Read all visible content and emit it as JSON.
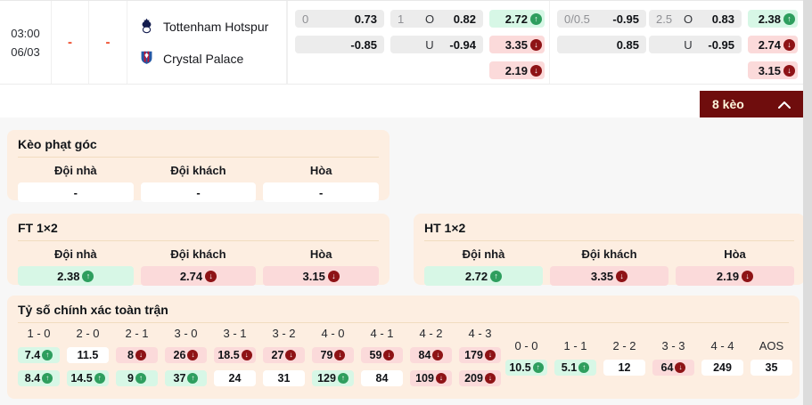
{
  "colors": {
    "up": "#2e9e5e",
    "down": "#8e1316",
    "green_bg": "#d7f7e6",
    "red_bg": "#fbdada",
    "panel_bg": "#fdeee1",
    "maroon": "#6f0d0d",
    "dash_red": "#ee4b2a"
  },
  "match": {
    "time": "03:00",
    "date": "06/03",
    "home_score": "-",
    "away_score": "-",
    "home_team": "Tottenham Hotspur",
    "away_team": "Crystal Palace"
  },
  "odds": {
    "groups": [
      {
        "handicap": {
          "line": "0",
          "home": "0.73",
          "away": "-0.85"
        },
        "ou": {
          "line": "1",
          "over_label": "O",
          "over": "0.82",
          "under_label": "U",
          "under": "-0.94"
        },
        "x12": [
          {
            "value": "2.72",
            "trend": "up"
          },
          {
            "value": "3.35",
            "trend": "down"
          },
          {
            "value": "2.19",
            "trend": "down"
          }
        ]
      },
      {
        "handicap": {
          "line": "0/0.5",
          "home": "-0.95",
          "away": "0.85"
        },
        "ou": {
          "line": "2.5",
          "over_label": "O",
          "over": "0.83",
          "under_label": "U",
          "under": "-0.95"
        },
        "x12": [
          {
            "value": "2.38",
            "trend": "up"
          },
          {
            "value": "2.74",
            "trend": "down"
          },
          {
            "value": "3.15",
            "trend": "down"
          }
        ]
      }
    ]
  },
  "keo": {
    "label": "8 kèo"
  },
  "corner": {
    "title": "Kèo phạt góc",
    "headers": [
      "Đội nhà",
      "Đội khách",
      "Hòa"
    ],
    "cells": [
      {
        "value": "-",
        "trend": "none"
      },
      {
        "value": "-",
        "trend": "none"
      },
      {
        "value": "-",
        "trend": "none"
      }
    ]
  },
  "ft": {
    "title": "FT 1×2",
    "headers": [
      "Đội nhà",
      "Đội khách",
      "Hòa"
    ],
    "cells": [
      {
        "value": "2.38",
        "trend": "up"
      },
      {
        "value": "2.74",
        "trend": "down"
      },
      {
        "value": "3.15",
        "trend": "down"
      }
    ]
  },
  "ht": {
    "title": "HT 1×2",
    "headers": [
      "Đội nhà",
      "Đội khách",
      "Hòa"
    ],
    "cells": [
      {
        "value": "2.72",
        "trend": "up"
      },
      {
        "value": "3.35",
        "trend": "down"
      },
      {
        "value": "2.19",
        "trend": "down"
      }
    ]
  },
  "score": {
    "title": "Tỷ số chính xác toàn trận",
    "columns": [
      {
        "label": "1 - 0",
        "top": {
          "value": "7.4",
          "trend": "up"
        },
        "bottom": {
          "value": "8.4",
          "trend": "up"
        }
      },
      {
        "label": "2 - 0",
        "top": {
          "value": "11.5",
          "trend": "none"
        },
        "bottom": {
          "value": "14.5",
          "trend": "up"
        }
      },
      {
        "label": "2 - 1",
        "top": {
          "value": "8",
          "trend": "down"
        },
        "bottom": {
          "value": "9",
          "trend": "up"
        }
      },
      {
        "label": "3 - 0",
        "top": {
          "value": "26",
          "trend": "down"
        },
        "bottom": {
          "value": "37",
          "trend": "up"
        }
      },
      {
        "label": "3 - 1",
        "top": {
          "value": "18.5",
          "trend": "down"
        },
        "bottom": {
          "value": "24",
          "trend": "none"
        }
      },
      {
        "label": "3 - 2",
        "top": {
          "value": "27",
          "trend": "down"
        },
        "bottom": {
          "value": "31",
          "trend": "none"
        }
      },
      {
        "label": "4 - 0",
        "top": {
          "value": "79",
          "trend": "down"
        },
        "bottom": {
          "value": "129",
          "trend": "up"
        }
      },
      {
        "label": "4 - 1",
        "top": {
          "value": "59",
          "trend": "down"
        },
        "bottom": {
          "value": "84",
          "trend": "none"
        }
      },
      {
        "label": "4 - 2",
        "top": {
          "value": "84",
          "trend": "down"
        },
        "bottom": {
          "value": "109",
          "trend": "down"
        }
      },
      {
        "label": "4 - 3",
        "top": {
          "value": "179",
          "trend": "down"
        },
        "bottom": {
          "value": "209",
          "trend": "down"
        }
      }
    ],
    "draw_columns": [
      {
        "label": "0 - 0",
        "cell": {
          "value": "10.5",
          "trend": "up"
        }
      },
      {
        "label": "1 - 1",
        "cell": {
          "value": "5.1",
          "trend": "up"
        }
      },
      {
        "label": "2 - 2",
        "cell": {
          "value": "12",
          "trend": "none"
        }
      },
      {
        "label": "3 - 3",
        "cell": {
          "value": "64",
          "trend": "down"
        }
      },
      {
        "label": "4 - 4",
        "cell": {
          "value": "249",
          "trend": "none"
        }
      },
      {
        "label": "AOS",
        "cell": {
          "value": "35",
          "trend": "none"
        }
      }
    ]
  }
}
